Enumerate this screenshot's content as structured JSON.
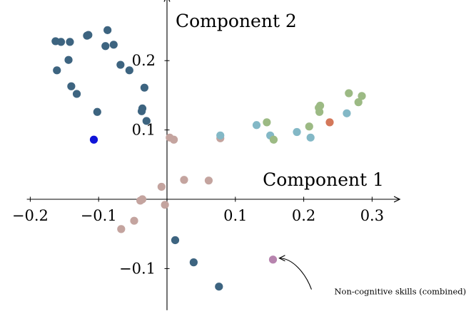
{
  "chart_data": {
    "type": "scatter",
    "title": "",
    "xlabel": "Component 1",
    "ylabel": "Component 2",
    "xlim": [
      -0.205,
      0.33
    ],
    "ylim": [
      -0.16,
      0.285
    ],
    "x_ticks": [
      -0.2,
      -0.1,
      0.1,
      0.2,
      0.3
    ],
    "x_tick_labels": [
      "−0.2",
      "−0.1",
      "0.1",
      "0.2",
      "0.3"
    ],
    "y_ticks": [
      -0.1,
      0.1,
      0.2
    ],
    "y_tick_labels": [
      "−0.1",
      "0.1",
      "0.2"
    ],
    "grid": false,
    "legend": "none",
    "series": [
      {
        "color": "#3d6480",
        "points": [
          [
            -0.163,
            0.228
          ],
          [
            -0.155,
            0.227
          ],
          [
            -0.142,
            0.227
          ],
          [
            -0.117,
            0.236
          ],
          [
            -0.115,
            0.237
          ],
          [
            -0.087,
            0.244
          ],
          [
            -0.09,
            0.221
          ],
          [
            -0.078,
            0.223
          ],
          [
            -0.144,
            0.201
          ],
          [
            -0.068,
            0.194
          ],
          [
            -0.055,
            0.186
          ],
          [
            -0.161,
            0.186
          ],
          [
            -0.033,
            0.161
          ],
          [
            -0.14,
            0.163
          ],
          [
            -0.132,
            0.152
          ],
          [
            -0.102,
            0.126
          ],
          [
            -0.036,
            0.131
          ],
          [
            -0.037,
            0.127
          ],
          [
            -0.03,
            0.113
          ],
          [
            0.012,
            -0.059
          ],
          [
            0.039,
            -0.091
          ],
          [
            0.076,
            -0.126
          ]
        ]
      },
      {
        "color": "#0f14d8",
        "points": [
          [
            -0.107,
            0.086
          ]
        ]
      },
      {
        "color": "#c4a49f",
        "points": [
          [
            0.004,
            0.089
          ],
          [
            0.01,
            0.086
          ],
          [
            0.078,
            0.088
          ],
          [
            0.025,
            0.028
          ],
          [
            0.061,
            0.027
          ],
          [
            -0.008,
            0.018
          ],
          [
            -0.036,
            0.0
          ],
          [
            -0.039,
            -0.002
          ],
          [
            -0.003,
            -0.008
          ],
          [
            -0.048,
            -0.031
          ],
          [
            -0.067,
            -0.043
          ]
        ]
      },
      {
        "color": "#83b8c6",
        "points": [
          [
            0.078,
            0.092
          ],
          [
            0.131,
            0.107
          ],
          [
            0.151,
            0.092
          ],
          [
            0.19,
            0.097
          ],
          [
            0.21,
            0.089
          ],
          [
            0.263,
            0.124
          ]
        ]
      },
      {
        "color": "#9cba84",
        "points": [
          [
            0.146,
            0.111
          ],
          [
            0.156,
            0.086
          ],
          [
            0.208,
            0.105
          ],
          [
            0.222,
            0.132
          ],
          [
            0.223,
            0.126
          ],
          [
            0.224,
            0.135
          ],
          [
            0.266,
            0.153
          ],
          [
            0.28,
            0.14
          ],
          [
            0.285,
            0.149
          ]
        ]
      },
      {
        "color": "#d4785a",
        "points": [
          [
            0.238,
            0.111
          ]
        ]
      },
      {
        "color": "#b784ae",
        "points": [
          [
            0.155,
            -0.087
          ]
        ]
      }
    ],
    "annotations": [
      {
        "text": "Non-cognitive skills (combined)",
        "target": [
          0.155,
          -0.087
        ]
      }
    ]
  }
}
